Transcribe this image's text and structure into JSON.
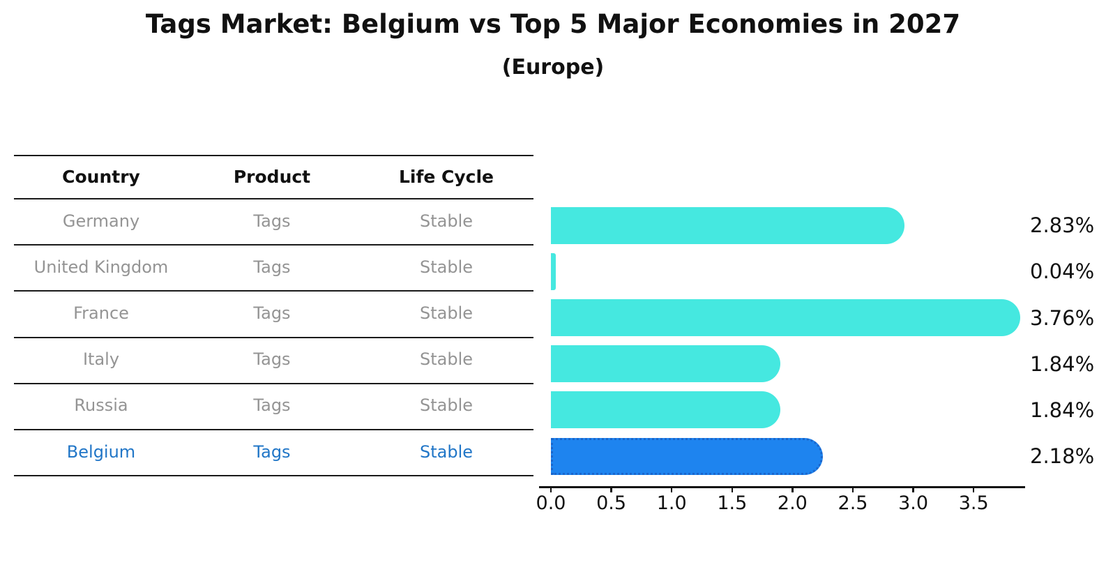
{
  "title": "Tags Market: Belgium vs Top 5 Major Economies in 2027",
  "subtitle": "(Europe)",
  "table": {
    "headers": [
      "Country",
      "Product",
      "Life Cycle"
    ],
    "rows": [
      {
        "country": "Germany",
        "product": "Tags",
        "life_cycle": "Stable",
        "highlighted": false
      },
      {
        "country": "United Kingdom",
        "product": "Tags",
        "life_cycle": "Stable",
        "highlighted": false
      },
      {
        "country": "France",
        "product": "Tags",
        "life_cycle": "Stable",
        "highlighted": false
      },
      {
        "country": "Italy",
        "product": "Tags",
        "life_cycle": "Stable",
        "highlighted": false
      },
      {
        "country": "Russia",
        "product": "Tags",
        "life_cycle": "Stable",
        "highlighted": false
      },
      {
        "country": "Belgium",
        "product": "Tags",
        "life_cycle": "Stable",
        "highlighted": true
      }
    ]
  },
  "chart_data": {
    "type": "bar",
    "orientation": "horizontal",
    "title": "Tags Market: Belgium vs Top 5 Major Economies in 2027",
    "subtitle": "(Europe)",
    "categories": [
      "Germany",
      "United Kingdom",
      "France",
      "Italy",
      "Russia",
      "Belgium"
    ],
    "values": [
      2.83,
      0.04,
      3.76,
      1.84,
      1.84,
      2.18
    ],
    "value_labels": [
      "2.83%",
      "0.04%",
      "3.76%",
      "1.84%",
      "1.84%",
      "2.18%"
    ],
    "xticks": [
      "0.0",
      "0.5",
      "1.0",
      "1.5",
      "2.0",
      "2.5",
      "3.0",
      "3.5"
    ],
    "xlim": [
      0,
      3.93
    ],
    "xlabel": "",
    "ylabel": "",
    "grid": false,
    "legend": null,
    "highlight_index": 5,
    "bar_color": "#45e8e0",
    "highlight_color": "#1e84ef",
    "highlight_border_color": "#1a66cc"
  },
  "colors": {
    "bar_cyan": "#45e8e0",
    "bar_blue": "#1e84ef",
    "bar_blue_border": "#1a66cc",
    "highlight_text": "#2176c7",
    "cell_text": "#949494",
    "line": "#1a1a1a",
    "axis": "#111111",
    "text": "#111111",
    "background": "#ffffff"
  }
}
